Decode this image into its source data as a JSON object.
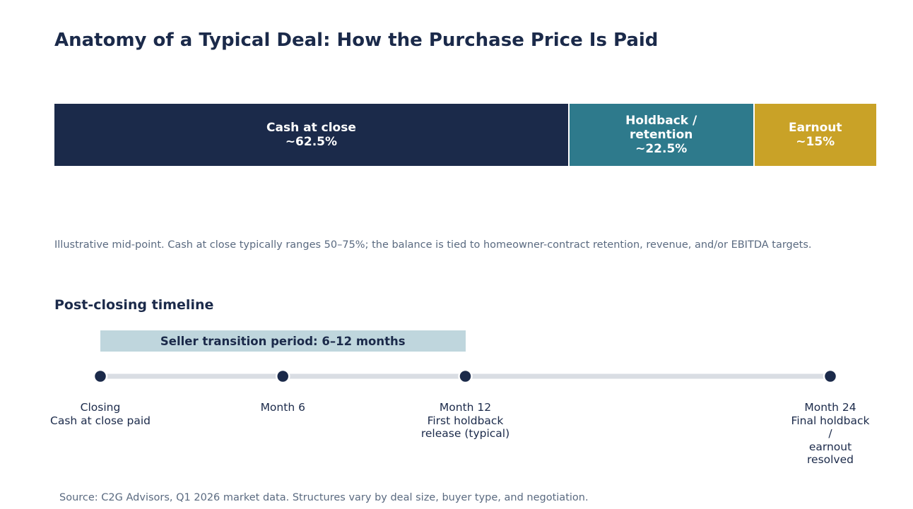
{
  "title": "Anatomy of a Typical Deal: How the Purchase Price Is Paid",
  "chart_data": {
    "type": "bar",
    "orientation": "horizontal-stacked",
    "segments": [
      {
        "label": "Cash at close",
        "value_label": "~62.5%",
        "value": 62.5,
        "color": "#1b2a4a"
      },
      {
        "label": "Holdback /\nretention",
        "value_label": "~22.5%",
        "value": 22.5,
        "color": "#2e7a8c"
      },
      {
        "label": "Earnout",
        "value_label": "~15%",
        "value": 15,
        "color": "#c9a227"
      }
    ]
  },
  "note": "Illustrative mid-point. Cash at close typically ranges 50–75%; the balance is tied to homeowner-contract retention, revenue, and/or EBITDA targets.",
  "timeline": {
    "heading": "Post-closing timeline",
    "period_label": "Seller transition period: 6–12 months",
    "period_start_month": 0,
    "period_end_month": 12,
    "max_month": 24,
    "milestones": [
      {
        "month": 0,
        "label": "Closing\nCash at close paid"
      },
      {
        "month": 6,
        "label": "Month 6"
      },
      {
        "month": 12,
        "label": "Month 12\nFirst holdback\nrelease (typical)"
      },
      {
        "month": 24,
        "label": "Month 24\nFinal holdback /\nearnout resolved"
      }
    ]
  },
  "source": "Source: C2G Advisors, Q1 2026 market data. Structures vary by deal size, buyer type, and negotiation.",
  "colors": {
    "navy": "#1b2a4a",
    "teal": "#2e7a8c",
    "gold": "#c9a227",
    "period_band": "#bfd6dd",
    "track": "#d9dde3",
    "muted_text": "#5a6a80"
  }
}
